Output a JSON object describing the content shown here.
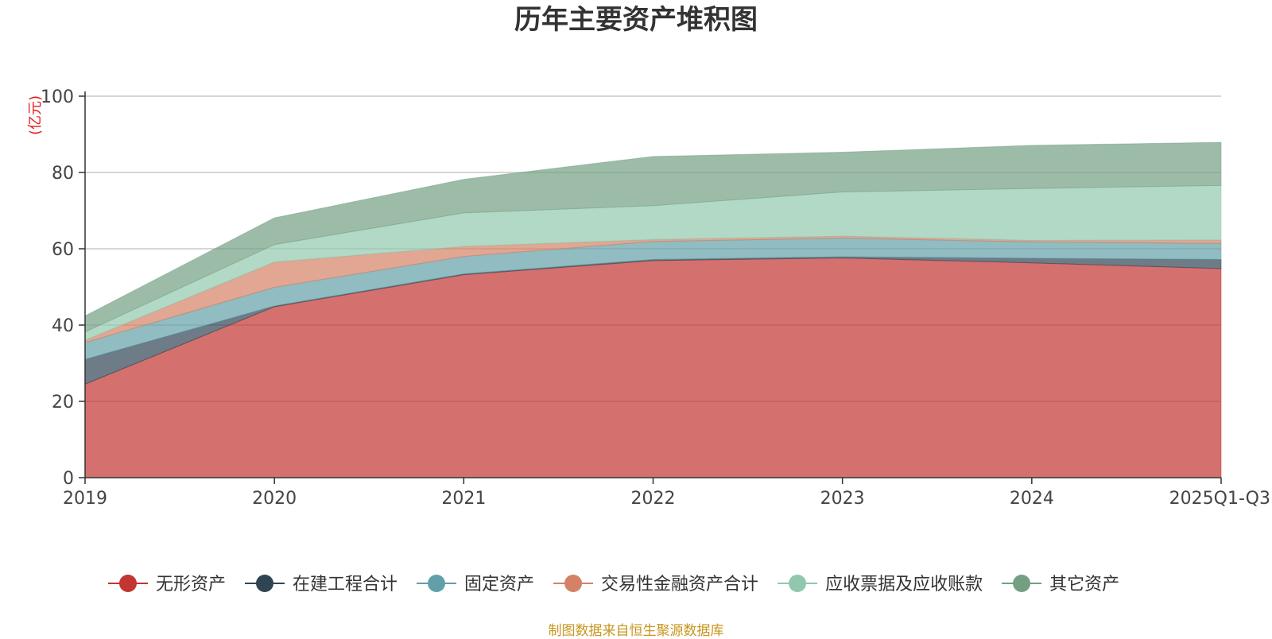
{
  "chart_data": {
    "type": "area",
    "stacked": true,
    "title": "历年主要资产堆积图",
    "unit_label": "(亿元)",
    "categories": [
      "2019",
      "2020",
      "2021",
      "2022",
      "2023",
      "2024",
      "2025Q1-Q3"
    ],
    "ylim": [
      0,
      100
    ],
    "yticks": [
      0,
      20,
      40,
      60,
      80,
      100
    ],
    "grid": true,
    "legend_position": "bottom",
    "series": [
      {
        "name": "无形资产",
        "color": "#c23531",
        "values": [
          24.5,
          44.8,
          53.2,
          56.9,
          57.6,
          56.3,
          54.8
        ]
      },
      {
        "name": "在建工程合计",
        "color": "#2f4554",
        "values": [
          6.5,
          0.2,
          0.2,
          0.3,
          0.3,
          1.2,
          2.4
        ]
      },
      {
        "name": "固定资产",
        "color": "#61a0a8",
        "values": [
          4.4,
          4.9,
          4.6,
          4.7,
          4.9,
          4.3,
          4.2
        ]
      },
      {
        "name": "交易性金融资产合计",
        "color": "#d48265",
        "values": [
          0.6,
          6.6,
          2.6,
          0.5,
          0.5,
          0.4,
          0.9
        ]
      },
      {
        "name": "应收票据及应收账款",
        "color": "#91c7ae",
        "values": [
          2.2,
          4.6,
          8.8,
          8.9,
          11.6,
          13.6,
          14.3
        ]
      },
      {
        "name": "其它资产",
        "color": "#749f83",
        "values": [
          4.2,
          7.0,
          8.8,
          12.9,
          10.4,
          11.3,
          11.3
        ]
      }
    ]
  },
  "footer": "制图数据来自恒生聚源数据库"
}
